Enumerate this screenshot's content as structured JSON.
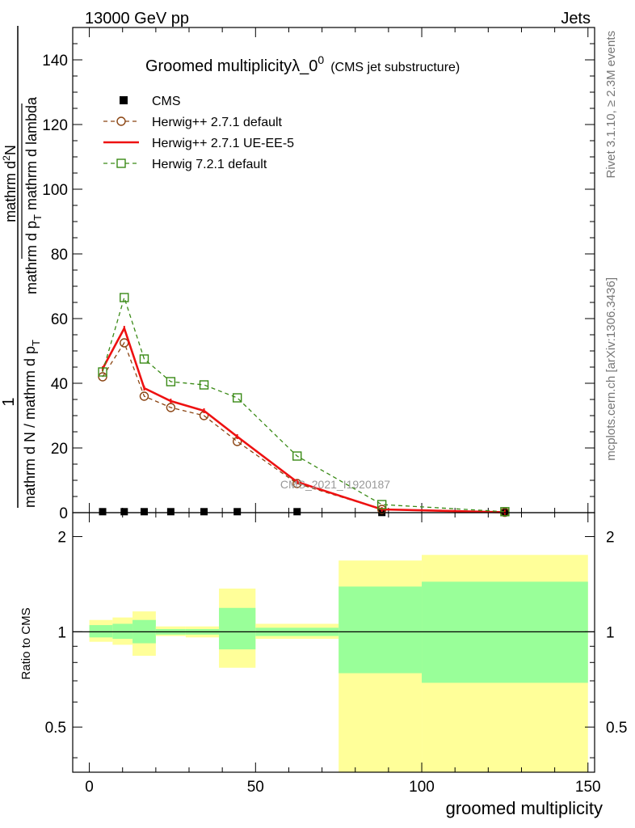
{
  "header": {
    "left": "13000 GeV pp",
    "right": "Jets"
  },
  "side_labels": {
    "rivet": "Rivet 3.1.10, ≥ 2.3M events",
    "mcplots": "mcplots.cern.ch [arXiv:1306.3436]"
  },
  "watermark": "CMS_2021_I1920187",
  "chart_data": [
    {
      "type": "line",
      "title": "Groomed multiplicityλ_0",
      "title_superscript": "0",
      "subtitle": "(CMS jet substructure)",
      "ylabel_numerator": "mathrm d²N",
      "ylabel_numerator_parts": [
        "mathrm d",
        "N"
      ],
      "ylabel_denominator": "mathrm d p_T mathrm d lambda",
      "ylabel_denominator_parts": [
        "mathrm d p",
        "T",
        " mathrm d lambda"
      ],
      "ylabel_prefix": "1",
      "ylabel_prefix_denominator": "mathrm d N / mathrm d p",
      "ylabel_prefix_denominator_sub": "T",
      "xlim": [
        -5,
        152
      ],
      "ylim": [
        0,
        150
      ],
      "yticks": [
        0,
        20,
        40,
        60,
        80,
        100,
        120,
        140
      ],
      "yticklabels": [
        "0",
        "20",
        "40",
        "60",
        "80",
        "100",
        "120",
        "140"
      ],
      "legend_position": "top-left",
      "series": [
        {
          "name": "CMS",
          "style": "marker-square",
          "color": "#000000",
          "x": [
            4,
            10.5,
            16.5,
            24.5,
            34.5,
            44.5,
            62.5,
            88,
            125
          ],
          "y": [
            0.3,
            0.3,
            0.3,
            0.3,
            0.3,
            0.3,
            0.3,
            0.05,
            0.02
          ],
          "xbins": [
            [
              2,
              6.5
            ],
            [
              8,
              13
            ],
            [
              14,
              20
            ],
            [
              20,
              29
            ],
            [
              29,
              40
            ],
            [
              40,
              50
            ],
            [
              50,
              75
            ],
            [
              75,
              100
            ],
            [
              100,
              150
            ]
          ]
        },
        {
          "name": "Herwig++ 2.7.1 default",
          "style": "dashed-circle",
          "color": "#8b4513",
          "x": [
            4,
            10.5,
            16.5,
            24.5,
            34.5,
            44.5,
            62.5,
            88,
            125
          ],
          "y": [
            42,
            52.5,
            36,
            32.5,
            30,
            22,
            9,
            1,
            0.1
          ]
        },
        {
          "name": "Herwig++ 2.7.1 UE-EE-5",
          "style": "solid",
          "color": "#ee1111",
          "x": [
            4,
            10.5,
            16.5,
            24.5,
            34.5,
            44.5,
            62.5,
            88,
            125
          ],
          "y": [
            44.5,
            57,
            38.5,
            34.5,
            31.5,
            23.5,
            9.5,
            1,
            0.1
          ]
        },
        {
          "name": "Herwig 7.2.1 default",
          "style": "dashed-square",
          "color": "#3a8a16",
          "x": [
            4,
            10.5,
            16.5,
            24.5,
            34.5,
            44.5,
            62.5,
            88,
            125
          ],
          "y": [
            43.5,
            66.5,
            47.5,
            40.5,
            39.5,
            35.5,
            17.5,
            2.5,
            0.3
          ]
        }
      ]
    },
    {
      "type": "area",
      "ylabel": "Ratio to CMS",
      "xlabel": "groomed multiplicity",
      "xlim": [
        -5,
        152
      ],
      "ylim": [
        0.36,
        2.38
      ],
      "xticks": [
        0,
        50,
        100,
        150
      ],
      "xticklabels": [
        "0",
        "50",
        "100",
        "150"
      ],
      "yticks": [
        0.5,
        1,
        2
      ],
      "yticklabels": [
        "0.5",
        "1",
        "2"
      ],
      "reference_line": 1,
      "band_colors": {
        "inner": "#99ff99",
        "outer": "#ffff99"
      },
      "bins": [
        {
          "x": [
            0,
            7
          ],
          "inner": [
            0.96,
            1.05
          ],
          "outer": [
            0.93,
            1.09
          ]
        },
        {
          "x": [
            7,
            13
          ],
          "inner": [
            0.95,
            1.06
          ],
          "outer": [
            0.91,
            1.11
          ]
        },
        {
          "x": [
            13,
            20
          ],
          "inner": [
            0.92,
            1.09
          ],
          "outer": [
            0.84,
            1.16
          ]
        },
        {
          "x": [
            20,
            29
          ],
          "inner": [
            0.98,
            1.02
          ],
          "outer": [
            0.97,
            1.04
          ]
        },
        {
          "x": [
            29,
            39
          ],
          "inner": [
            0.98,
            1.02
          ],
          "outer": [
            0.96,
            1.04
          ]
        },
        {
          "x": [
            39,
            50
          ],
          "inner": [
            0.88,
            1.19
          ],
          "outer": [
            0.77,
            1.37
          ]
        },
        {
          "x": [
            50,
            75
          ],
          "inner": [
            0.97,
            1.03
          ],
          "outer": [
            0.95,
            1.06
          ]
        },
        {
          "x": [
            75,
            100
          ],
          "inner": [
            0.74,
            1.39
          ],
          "outer": [
            0.36,
            1.68
          ]
        },
        {
          "x": [
            100,
            150
          ],
          "inner": [
            0.69,
            1.44
          ],
          "outer": [
            0.36,
            1.75
          ]
        }
      ]
    }
  ]
}
